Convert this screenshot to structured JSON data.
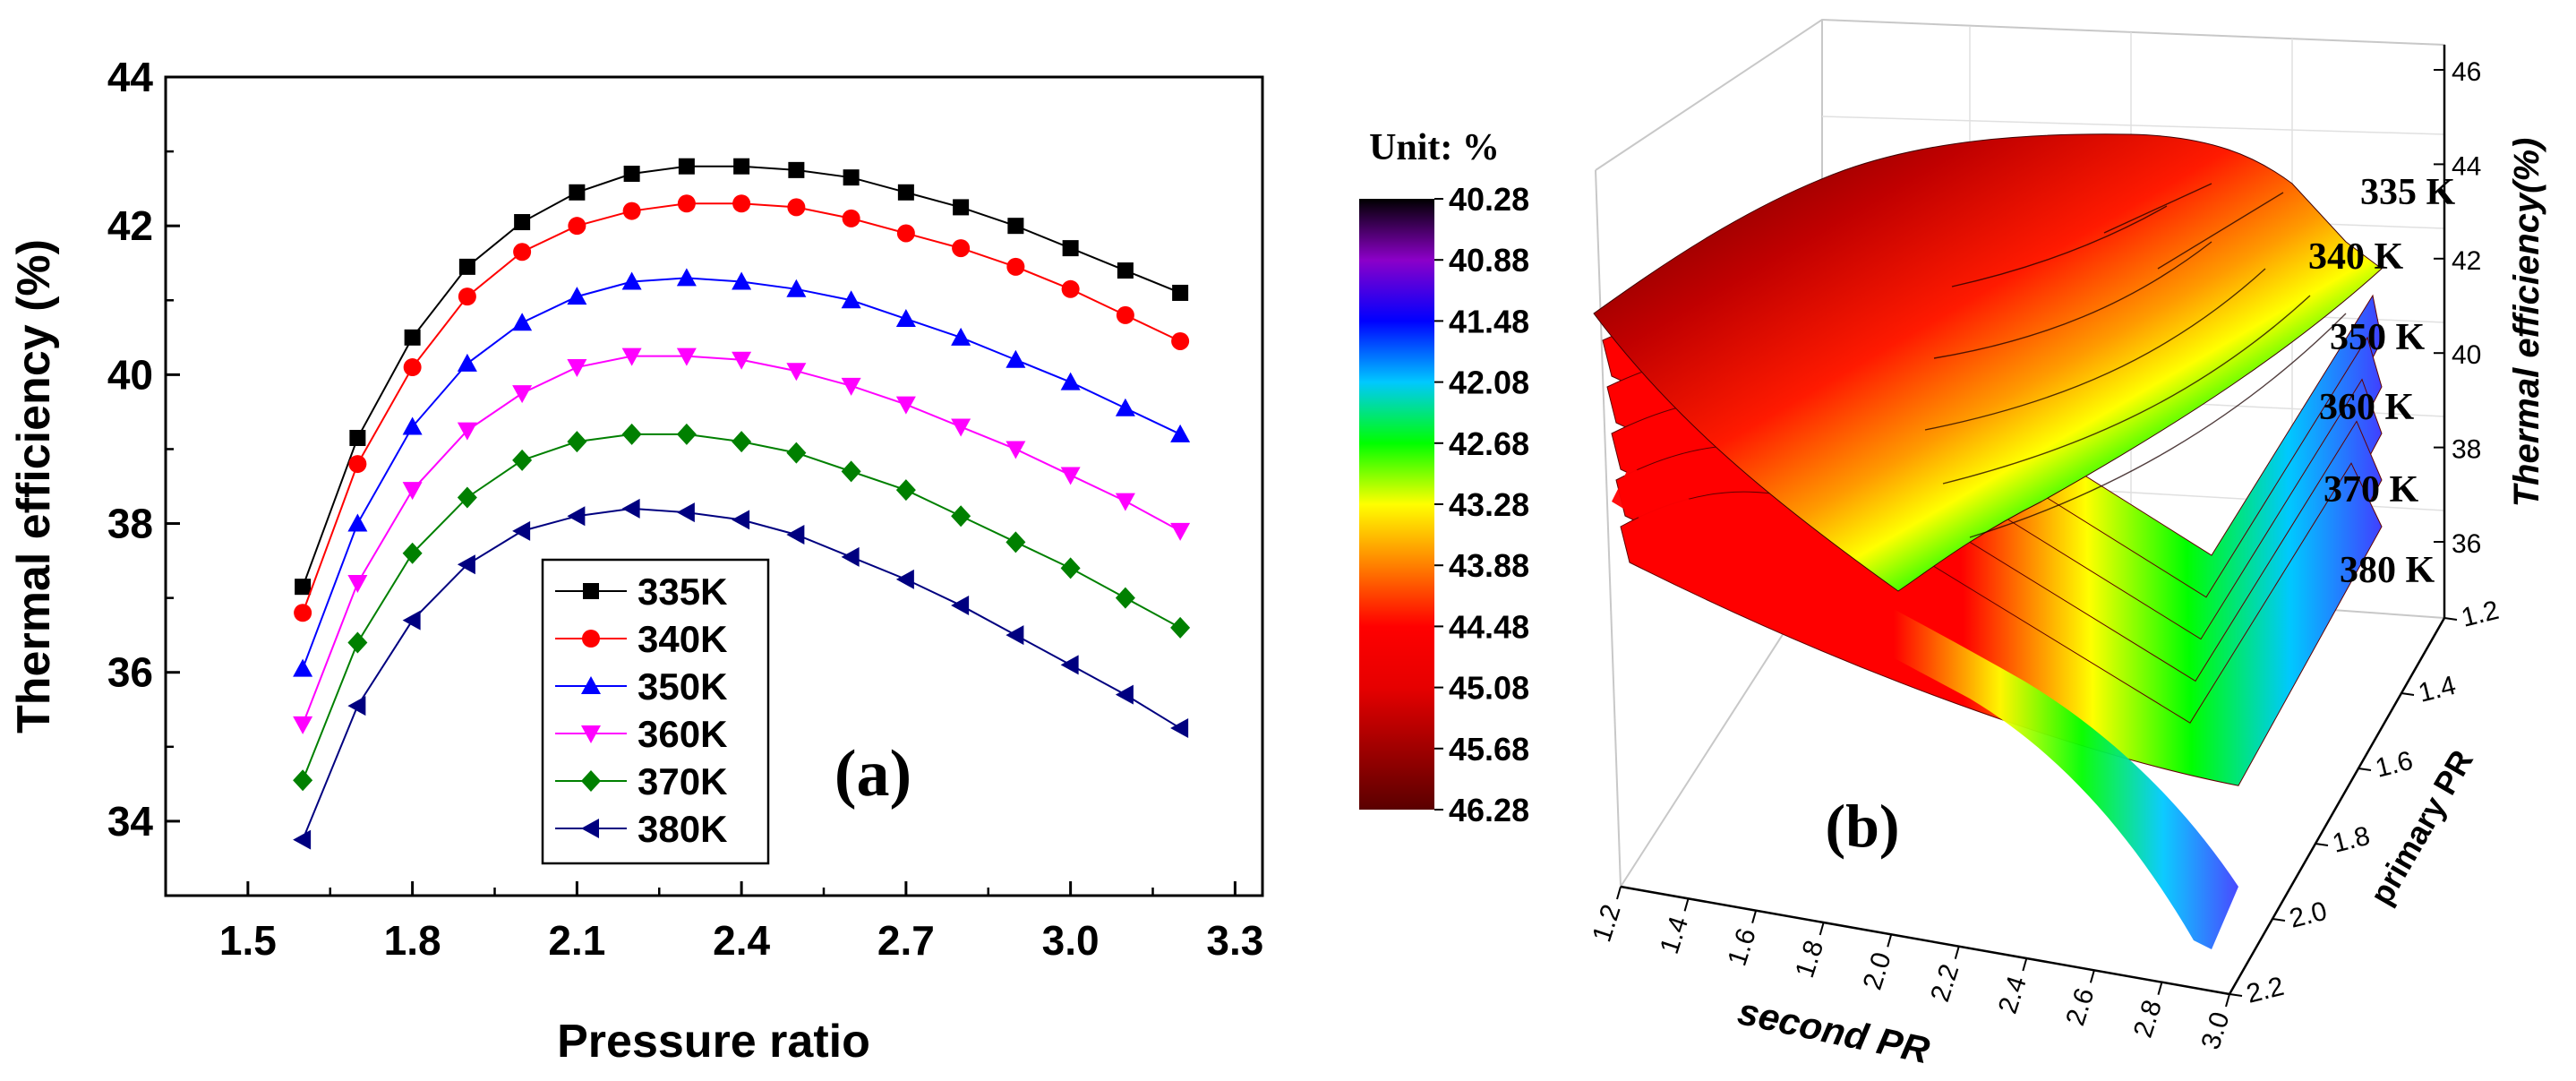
{
  "chart_data": [
    {
      "type": "line",
      "panel_label": "(a)",
      "xlabel": "Pressure ratio",
      "ylabel": "Thermal efficiency (%)",
      "xlim": [
        1.35,
        3.35
      ],
      "ylim": [
        33,
        44
      ],
      "xticks": [
        "1.5",
        "1.8",
        "2.1",
        "2.4",
        "2.7",
        "3.0",
        "3.3"
      ],
      "yticks": [
        "34",
        "36",
        "38",
        "40",
        "42",
        "44"
      ],
      "legend_position": "bottom-center",
      "x": [
        1.6,
        1.7,
        1.8,
        1.9,
        2.0,
        2.1,
        2.2,
        2.3,
        2.4,
        2.5,
        2.6,
        2.7,
        2.8,
        2.9,
        3.0,
        3.1,
        3.2
      ],
      "series": [
        {
          "name": "335K",
          "color": "#000000",
          "marker": "square",
          "values": [
            37.15,
            39.15,
            40.5,
            41.45,
            42.05,
            42.45,
            42.7,
            42.8,
            42.8,
            42.75,
            42.65,
            42.45,
            42.25,
            42.0,
            41.7,
            41.4,
            41.1
          ]
        },
        {
          "name": "340K",
          "color": "#ff0000",
          "marker": "circle",
          "values": [
            36.8,
            38.8,
            40.1,
            41.05,
            41.65,
            42.0,
            42.2,
            42.3,
            42.3,
            42.25,
            42.1,
            41.9,
            41.7,
            41.45,
            41.15,
            40.8,
            40.45
          ]
        },
        {
          "name": "350K",
          "color": "#0000ff",
          "marker": "triangle-up",
          "values": [
            36.05,
            38.0,
            39.3,
            40.15,
            40.7,
            41.05,
            41.25,
            41.3,
            41.25,
            41.15,
            41.0,
            40.75,
            40.5,
            40.2,
            39.9,
            39.55,
            39.2
          ]
        },
        {
          "name": "360K",
          "color": "#ff00ff",
          "marker": "triangle-down",
          "values": [
            35.3,
            37.2,
            38.45,
            39.25,
            39.75,
            40.1,
            40.25,
            40.25,
            40.2,
            40.05,
            39.85,
            39.6,
            39.3,
            39.0,
            38.65,
            38.3,
            37.9
          ]
        },
        {
          "name": "370K",
          "color": "#008000",
          "marker": "diamond",
          "values": [
            34.55,
            36.4,
            37.6,
            38.35,
            38.85,
            39.1,
            39.2,
            39.2,
            39.1,
            38.95,
            38.7,
            38.45,
            38.1,
            37.75,
            37.4,
            37.0,
            36.6
          ]
        },
        {
          "name": "380K",
          "color": "#000080",
          "marker": "triangle-left",
          "values": [
            33.75,
            35.55,
            36.7,
            37.45,
            37.9,
            38.1,
            38.2,
            38.15,
            38.05,
            37.85,
            37.55,
            37.25,
            36.9,
            36.5,
            36.1,
            35.7,
            35.25
          ]
        }
      ]
    },
    {
      "type": "surface3d",
      "panel_label": "(b)",
      "xlabel": "second PR",
      "ylabel": "primary PR",
      "zlabel": "Thermal efficiency(%)",
      "xlim": [
        1.2,
        3.0
      ],
      "ylim": [
        1.2,
        2.2
      ],
      "zlim": [
        34,
        46
      ],
      "xticks": [
        "1.2",
        "1.4",
        "1.6",
        "1.8",
        "2.0",
        "2.2",
        "2.4",
        "2.6",
        "2.8",
        "3.0"
      ],
      "yticks": [
        "1.2",
        "1.4",
        "1.6",
        "1.8",
        "2.0",
        "2.2"
      ],
      "zticks": [
        "36",
        "38",
        "40",
        "42",
        "44",
        "46"
      ],
      "surface_labels": [
        "335 K",
        "340 K",
        "350 K",
        "360 K",
        "370 K",
        "380 K"
      ],
      "colorbar": {
        "title": "Unit: %",
        "ticks": [
          "40.28",
          "40.88",
          "41.48",
          "42.08",
          "42.68",
          "43.28",
          "43.88",
          "44.48",
          "45.08",
          "45.68",
          "46.28"
        ],
        "colors": [
          "#000000",
          "#8c00c8",
          "#0000ff",
          "#00c8ff",
          "#00ff00",
          "#ffff00",
          "#ff8000",
          "#ff0000",
          "#e60000",
          "#a00000",
          "#5a0000"
        ]
      }
    }
  ]
}
